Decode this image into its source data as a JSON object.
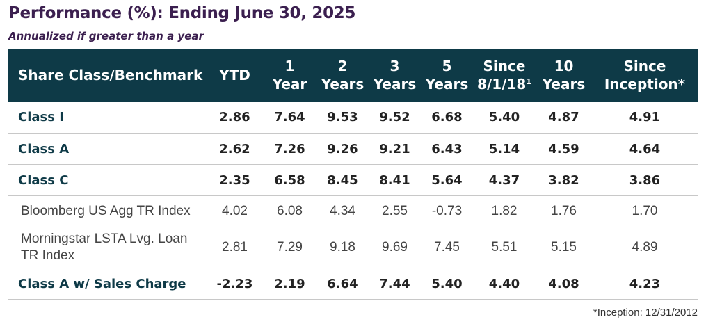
{
  "title": "Performance (%): Ending June 30, 2025",
  "subtitle": "Annualized if greater than a year",
  "header": {
    "col0": "Share Class/Benchmark",
    "col1": "YTD",
    "col2_line1": "1",
    "col2_line2": "Year",
    "col3_line1": "2",
    "col3_line2": "Years",
    "col4_line1": "3",
    "col4_line2": "Years",
    "col5_line1": "5",
    "col5_line2": "Years",
    "col6_line1": "Since",
    "col6_line2": "8/1/18",
    "col6_sup": "1",
    "col7_line1": "10",
    "col7_line2": "Years",
    "col8_line1": "Since",
    "col8_line2": "Inception*"
  },
  "rows": [
    {
      "name": "Class I",
      "values": [
        "2.86",
        "7.64",
        "9.53",
        "9.52",
        "6.68",
        "5.40",
        "4.87",
        "4.91"
      ]
    },
    {
      "name": "Class A",
      "values": [
        "2.62",
        "7.26",
        "9.26",
        "9.21",
        "6.43",
        "5.14",
        "4.59",
        "4.64"
      ]
    },
    {
      "name": "Class C",
      "values": [
        "2.35",
        "6.58",
        "8.45",
        "8.41",
        "5.64",
        "4.37",
        "3.82",
        "3.86"
      ]
    },
    {
      "name": "Bloomberg US Agg TR Index",
      "values": [
        "4.02",
        "6.08",
        "4.34",
        "2.55",
        "-0.73",
        "1.82",
        "1.76",
        "1.70"
      ]
    },
    {
      "name_line1": "Morningstar LSTA Lvg. Loan",
      "name_line2": "TR Index",
      "values": [
        "2.81",
        "7.29",
        "9.18",
        "9.69",
        "7.45",
        "5.51",
        "5.15",
        "4.89"
      ]
    },
    {
      "name": "Class A w/ Sales Charge",
      "values": [
        "-2.23",
        "2.19",
        "6.64",
        "7.44",
        "5.40",
        "4.40",
        "4.08",
        "4.23"
      ]
    }
  ],
  "footnote": "*Inception: 12/31/2012",
  "colors": {
    "header_bg": "#0e3a47",
    "title": "#3b1f4f",
    "fund_name": "#0e3a47"
  }
}
